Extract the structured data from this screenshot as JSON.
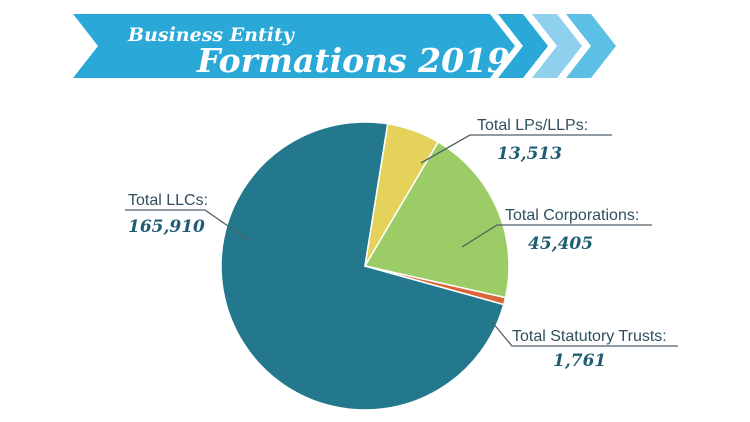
{
  "header": {
    "line1": "Business Entity",
    "line2": "Formations 2019",
    "colors": {
      "banner": "#2aa9d8",
      "chevron1": "#2aa9d8",
      "chevron2": "#8fd0ee",
      "chevron3": "#5bbfe6"
    }
  },
  "chart_data": {
    "type": "pie",
    "title": "Business Entity Formations 2019",
    "slices": [
      {
        "label": "Total LLCs:",
        "value": 165910,
        "value_text": "165,910",
        "color": "#23788d"
      },
      {
        "label": "Total LPs/LLPs:",
        "value": 13513,
        "value_text": "13,513",
        "color": "#e4d25a"
      },
      {
        "label": "Total Corporations:",
        "value": 45405,
        "value_text": "45,405",
        "color": "#9bcc66"
      },
      {
        "label": "Total Statutory Trusts:",
        "value": 1761,
        "value_text": "1,761",
        "color": "#d9663a"
      }
    ]
  }
}
